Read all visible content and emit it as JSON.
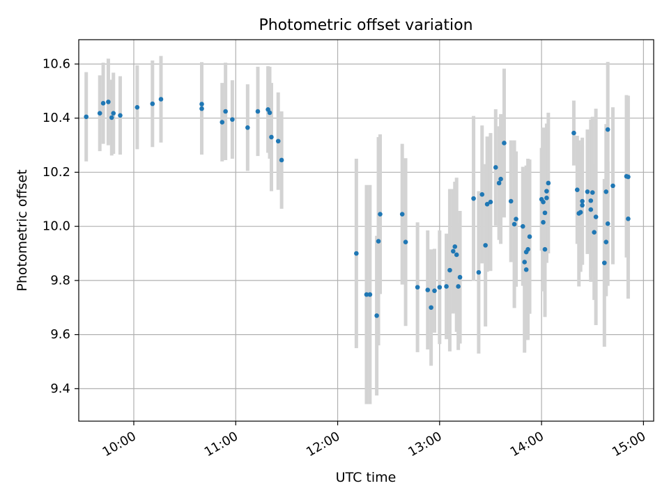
{
  "chart_data": {
    "type": "scatter",
    "title": "Photometric offset variation",
    "xlabel": "UTC time",
    "ylabel": "Photometric offset",
    "x_unit": "UTC hours",
    "xlim": [
      9.46,
      15.1
    ],
    "ylim": [
      9.28,
      10.69
    ],
    "x_ticks": [
      "10:00",
      "11:00",
      "12:00",
      "13:00",
      "14:00",
      "15:00"
    ],
    "y_ticks": [
      "9.4",
      "9.6",
      "9.8",
      "10.0",
      "10.2",
      "10.4",
      "10.6"
    ],
    "grid": true,
    "colors": {
      "point": "#1f77b4",
      "errorbar": "#d3d3d3",
      "grid": "#b0b0b0"
    },
    "points": [
      [
        "09:32",
        10.405,
        0.165
      ],
      [
        "09:40",
        10.418,
        0.14
      ],
      [
        "09:42",
        10.455,
        0.15
      ],
      [
        "09:45",
        10.46,
        0.16
      ],
      [
        "09:47",
        10.402,
        0.14
      ],
      [
        "09:48",
        10.418,
        0.15
      ],
      [
        "09:52",
        10.41,
        0.145
      ],
      [
        "10:02",
        10.44,
        0.155
      ],
      [
        "10:11",
        10.453,
        0.16
      ],
      [
        "10:16",
        10.47,
        0.16
      ],
      [
        "10:40",
        10.452,
        0.155
      ],
      [
        "10:40",
        10.435,
        0.17
      ],
      [
        "10:52",
        10.385,
        0.145
      ],
      [
        "10:54",
        10.425,
        0.18
      ],
      [
        "10:58",
        10.395,
        0.145
      ],
      [
        "11:07",
        10.365,
        0.16
      ],
      [
        "11:13",
        10.425,
        0.165
      ],
      [
        "11:19",
        10.432,
        0.16
      ],
      [
        "11:20",
        10.42,
        0.17
      ],
      [
        "11:21",
        10.33,
        0.2
      ],
      [
        "11:25",
        10.315,
        0.18
      ],
      [
        "11:27",
        10.245,
        0.18
      ],
      [
        "12:11",
        9.9,
        0.35
      ],
      [
        "12:17",
        9.748,
        0.405
      ],
      [
        "12:19",
        9.748,
        0.405
      ],
      [
        "12:23",
        9.67,
        0.295
      ],
      [
        "12:24",
        9.945,
        0.385
      ],
      [
        "12:25",
        10.045,
        0.295
      ],
      [
        "12:38",
        10.045,
        0.26
      ],
      [
        "12:40",
        9.942,
        0.31
      ],
      [
        "12:47",
        9.775,
        0.24
      ],
      [
        "12:53",
        9.765,
        0.22
      ],
      [
        "12:55",
        9.7,
        0.215
      ],
      [
        "12:57",
        9.762,
        0.155
      ],
      [
        "13:00",
        9.775,
        0.21
      ],
      [
        "13:04",
        9.778,
        0.195
      ],
      [
        "13:06",
        9.838,
        0.3
      ],
      [
        "13:08",
        9.908,
        0.23
      ],
      [
        "13:09",
        9.925,
        0.24
      ],
      [
        "13:10",
        9.895,
        0.285
      ],
      [
        "13:11",
        9.778,
        0.235
      ],
      [
        "13:12",
        9.812,
        0.245
      ],
      [
        "13:20",
        10.103,
        0.305
      ],
      [
        "13:23",
        9.83,
        0.3
      ],
      [
        "13:25",
        10.118,
        0.255
      ],
      [
        "13:27",
        9.93,
        0.3
      ],
      [
        "13:28",
        10.082,
        0.25
      ],
      [
        "13:30",
        10.09,
        0.255
      ],
      [
        "13:33",
        10.218,
        0.215
      ],
      [
        "13:35",
        10.16,
        0.21
      ],
      [
        "13:36",
        10.175,
        0.24
      ],
      [
        "13:38",
        10.308,
        0.275
      ],
      [
        "13:42",
        10.093,
        0.225
      ],
      [
        "13:44",
        10.008,
        0.31
      ],
      [
        "13:45",
        10.027,
        0.25
      ],
      [
        "13:49",
        10.0,
        0.22
      ],
      [
        "13:50",
        9.868,
        0.335
      ],
      [
        "13:51",
        9.84,
        0.26
      ],
      [
        "13:51",
        9.905,
        0.32
      ],
      [
        "13:52",
        9.915,
        0.335
      ],
      [
        "13:53",
        9.962,
        0.285
      ],
      [
        "14:00",
        10.1,
        0.19
      ],
      [
        "14:01",
        10.015,
        0.255
      ],
      [
        "14:01",
        10.09,
        0.275
      ],
      [
        "14:02",
        10.05,
        0.28
      ],
      [
        "14:02",
        9.915,
        0.25
      ],
      [
        "14:03",
        10.105,
        0.24
      ],
      [
        "14:03",
        10.13,
        0.25
      ],
      [
        "14:04",
        10.16,
        0.26
      ],
      [
        "14:19",
        10.345,
        0.12
      ],
      [
        "14:21",
        10.135,
        0.2
      ],
      [
        "14:22",
        10.048,
        0.27
      ],
      [
        "14:23",
        10.052,
        0.22
      ],
      [
        "14:24",
        10.078,
        0.22
      ],
      [
        "14:24",
        10.093,
        0.235
      ],
      [
        "14:27",
        10.128,
        0.23
      ],
      [
        "14:29",
        10.062,
        0.25
      ],
      [
        "14:29",
        10.095,
        0.3
      ],
      [
        "14:30",
        10.125,
        0.28
      ],
      [
        "14:31",
        9.978,
        0.25
      ],
      [
        "14:32",
        10.035,
        0.4
      ],
      [
        "14:37",
        9.865,
        0.31
      ],
      [
        "14:38",
        9.942,
        0.2
      ],
      [
        "14:38",
        10.128,
        0.25
      ],
      [
        "14:39",
        10.01,
        0.23
      ],
      [
        "14:39",
        10.358,
        0.25
      ],
      [
        "14:42",
        10.15,
        0.29
      ],
      [
        "14:50",
        10.185,
        0.3
      ],
      [
        "14:51",
        10.183,
        0.3
      ],
      [
        "14:51",
        10.028,
        0.295
      ]
    ]
  }
}
